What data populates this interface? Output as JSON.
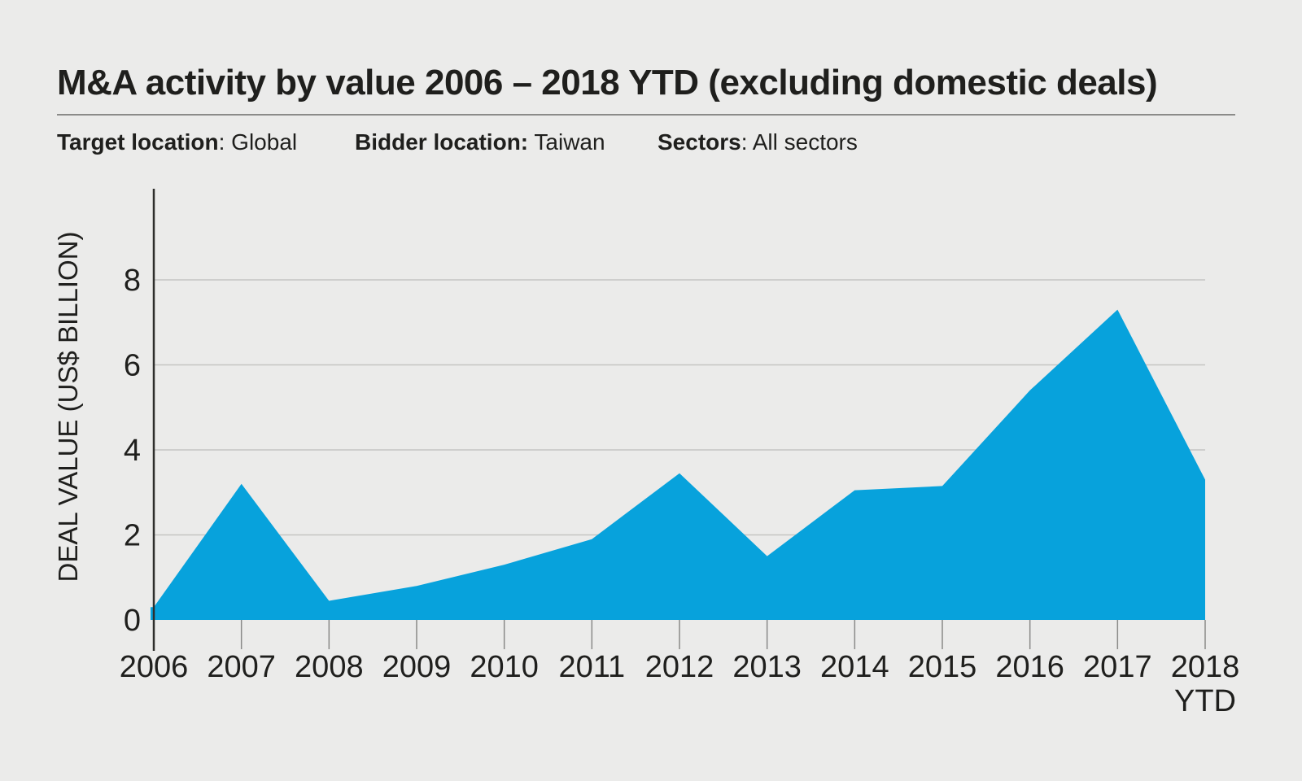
{
  "header": {
    "title": "M&A activity by value 2006 – 2018 YTD (excluding domestic deals)"
  },
  "filters": [
    {
      "label": "Target location",
      "value": ": Global"
    },
    {
      "label": "Bidder location:",
      "value": " Taiwan"
    },
    {
      "label": "Sectors",
      "value": ": All sectors"
    }
  ],
  "chart_data": {
    "type": "area",
    "title": "M&A activity by value 2006 – 2018 YTD (excluding domestic deals)",
    "subtitle": "Target location: Global | Bidder location: Taiwan | Sectors: All sectors",
    "categories": [
      "2006",
      "2007",
      "2008",
      "2009",
      "2010",
      "2011",
      "2012",
      "2013",
      "2014",
      "2015",
      "2016",
      "2017",
      "2018 YTD"
    ],
    "values": [
      0.3,
      3.2,
      0.45,
      0.8,
      1.3,
      1.9,
      3.45,
      1.5,
      3.05,
      3.15,
      5.4,
      7.3,
      3.3
    ],
    "xlabel": "",
    "ylabel": "DEAL VALUE (US$ BILLION)",
    "yticks": [
      0,
      2,
      4,
      6,
      8
    ],
    "ylim": [
      0,
      10
    ],
    "grid": true,
    "legend": false,
    "last_category_line1": "2018",
    "last_category_line2": "YTD",
    "colors": {
      "area": "#07a2dc",
      "background": "#ebebea",
      "text": "#1f1f1d",
      "gridline": "#c5c5c3",
      "axis": "#2e2e2c",
      "tick": "#8a8a88"
    }
  }
}
